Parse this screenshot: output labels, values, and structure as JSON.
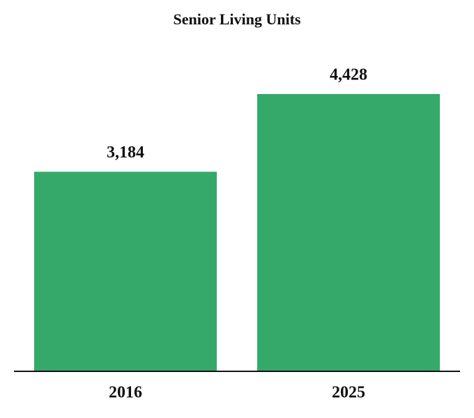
{
  "chart_data": {
    "type": "bar",
    "title": "Senior Living Units",
    "categories": [
      "2016",
      "2025"
    ],
    "values": [
      3184,
      4428
    ],
    "value_labels": [
      "3,184",
      "4,428"
    ],
    "color": "#34a96a"
  }
}
